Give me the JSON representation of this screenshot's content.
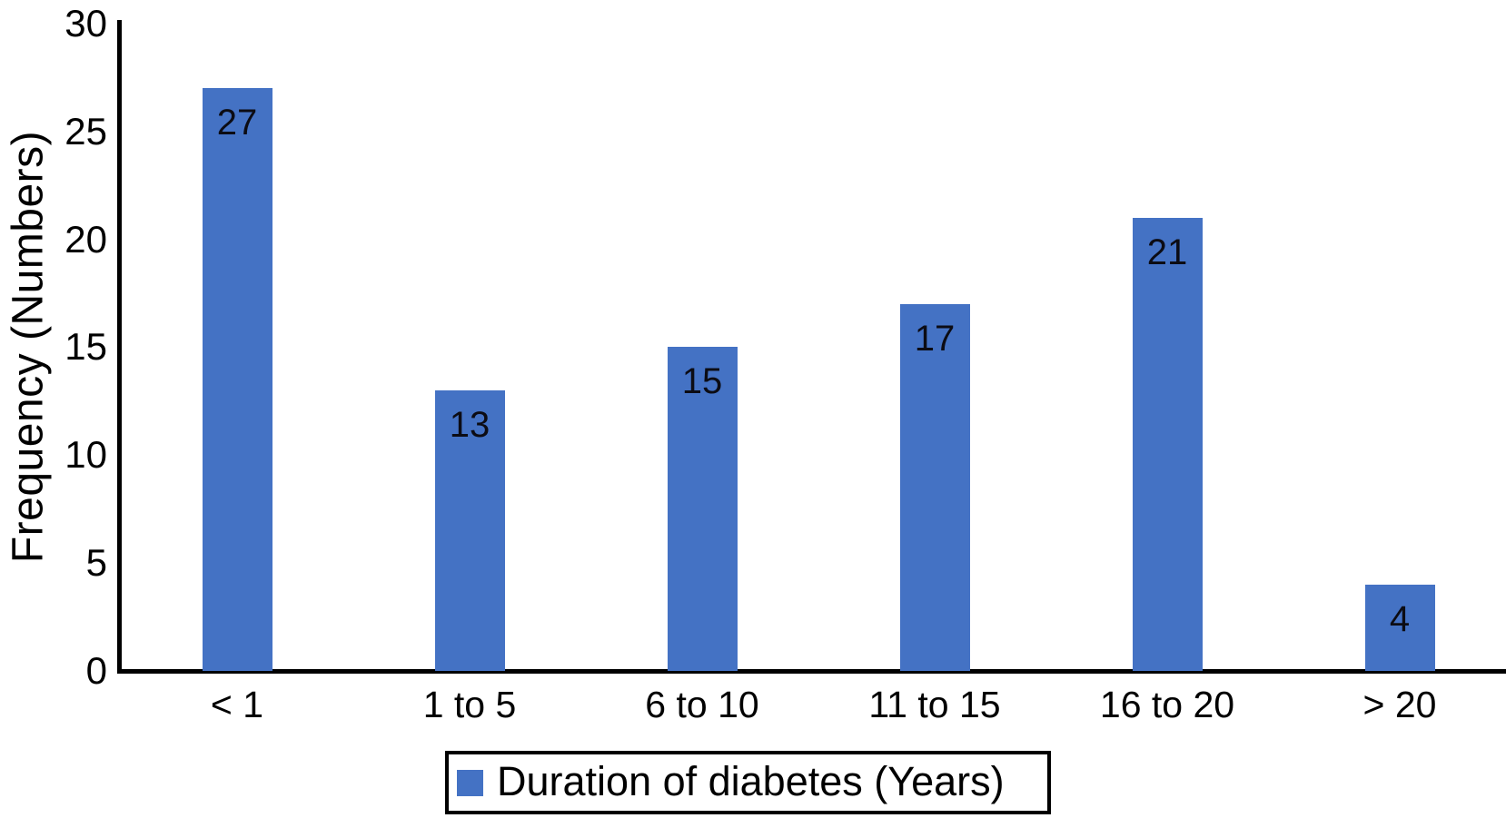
{
  "chart_data": {
    "type": "bar",
    "title": "",
    "categories": [
      "< 1",
      "1 to 5",
      "6 to 10",
      "11 to 15",
      "16 to 20",
      "> 20"
    ],
    "values": [
      27,
      13,
      15,
      17,
      21,
      4
    ],
    "data_labels": [
      27,
      13,
      15,
      17,
      21,
      4
    ],
    "series": "Duration of diabetes (Years)",
    "xlabel": "",
    "ylabel": "Frequency (Numbers)",
    "ylim": [
      0,
      30
    ],
    "yticks": [
      0,
      5,
      10,
      15,
      20,
      25,
      30
    ],
    "grid": false,
    "legend_position": "bottom-center",
    "data_label_position": "inside-top",
    "bar_color": "#4472C4",
    "axis_color": "#000000",
    "text_color": "#000000"
  }
}
